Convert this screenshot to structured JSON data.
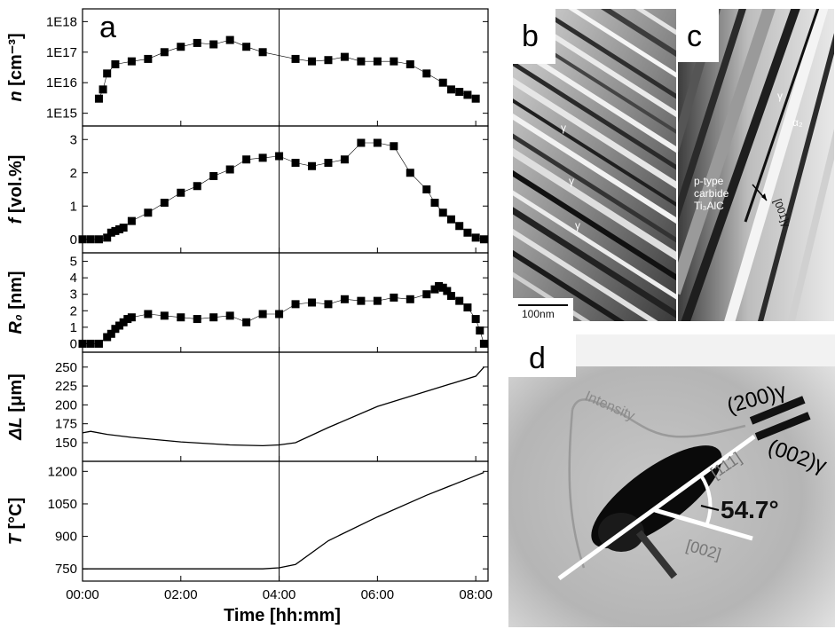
{
  "panels": {
    "a": {
      "letter": "a"
    },
    "b": {
      "letter": "b",
      "labels": [
        "γ",
        "γ",
        "γ"
      ],
      "scalebar": "100nm"
    },
    "c": {
      "letter": "c",
      "labels": {
        "gamma": "γ",
        "alpha2": "α₂",
        "carbide_line1": "p-type",
        "carbide_line2": "carbide",
        "carbide_line3": "Ti₃AlC",
        "direction": "[001]γ"
      }
    },
    "d": {
      "letter": "d",
      "labels": {
        "intensity": "Intensity",
        "d200": "(200)γ",
        "d002": "(002)γ",
        "m111": "[111]",
        "m002": "[002]",
        "angle": "54.7°"
      }
    }
  },
  "axes": {
    "xlabel": "Time [hh:mm]",
    "x_ticks": [
      "00:00",
      "02:00",
      "04:00",
      "06:00",
      "08:00"
    ]
  },
  "chart_data": [
    {
      "type": "scatter",
      "ylabel_italic": "n",
      "ylabel_rest": " [cm⁻³]",
      "yscale": "log",
      "ylim": [
        500000000000000.0,
        2e+18
      ],
      "yticks": [
        "1E15",
        "1E16",
        "1E17",
        "1E18"
      ],
      "x": [
        "00:20",
        "00:25",
        "00:30",
        "00:40",
        "01:00",
        "01:20",
        "01:40",
        "02:00",
        "02:20",
        "02:40",
        "03:00",
        "03:20",
        "03:40",
        "04:20",
        "04:40",
        "05:00",
        "05:20",
        "05:40",
        "06:00",
        "06:20",
        "06:40",
        "07:00",
        "07:20",
        "07:30",
        "07:40",
        "07:50",
        "08:00"
      ],
      "values": [
        3000000000000000.0,
        6000000000000000.0,
        2e+16,
        4e+16,
        5e+16,
        6e+16,
        1e+17,
        1.5e+17,
        2e+17,
        1.8e+17,
        2.5e+17,
        1.5e+17,
        1e+17,
        6e+16,
        5e+16,
        5.5e+16,
        7e+16,
        5e+16,
        5e+16,
        5e+16,
        4e+16,
        2e+16,
        1e+16,
        6000000000000000.0,
        5000000000000000.0,
        4000000000000000.0,
        3000000000000000.0
      ]
    },
    {
      "type": "scatter",
      "ylabel_italic": "f",
      "ylabel_rest": " [vol.%]",
      "ylim": [
        -0.3,
        3.3
      ],
      "yticks": [
        "0",
        "1",
        "2",
        "3"
      ],
      "x": [
        "00:00",
        "00:10",
        "00:20",
        "00:30",
        "00:35",
        "00:40",
        "00:45",
        "00:50",
        "01:00",
        "01:20",
        "01:40",
        "02:00",
        "02:20",
        "02:40",
        "03:00",
        "03:20",
        "03:40",
        "04:00",
        "04:20",
        "04:40",
        "05:00",
        "05:20",
        "05:40",
        "06:00",
        "06:20",
        "06:40",
        "07:00",
        "07:10",
        "07:20",
        "07:30",
        "07:40",
        "07:50",
        "08:00",
        "08:10"
      ],
      "values": [
        0,
        0,
        0,
        0.05,
        0.2,
        0.25,
        0.3,
        0.35,
        0.55,
        0.8,
        1.1,
        1.4,
        1.6,
        1.9,
        2.1,
        2.4,
        2.45,
        2.5,
        2.3,
        2.2,
        2.3,
        2.4,
        2.9,
        2.9,
        2.8,
        2.0,
        1.5,
        1.1,
        0.8,
        0.6,
        0.4,
        0.2,
        0.05,
        0
      ]
    },
    {
      "type": "scatter",
      "ylabel_italic": "R₀",
      "ylabel_rest": " [nm]",
      "ylim": [
        -0.3,
        5.3
      ],
      "yticks": [
        "0",
        "1",
        "2",
        "3",
        "4",
        "5"
      ],
      "x": [
        "00:00",
        "00:10",
        "00:20",
        "00:30",
        "00:35",
        "00:40",
        "00:45",
        "00:50",
        "00:55",
        "01:00",
        "01:20",
        "01:40",
        "02:00",
        "02:20",
        "02:40",
        "03:00",
        "03:20",
        "03:40",
        "04:00",
        "04:20",
        "04:40",
        "05:00",
        "05:20",
        "05:40",
        "06:00",
        "06:20",
        "06:40",
        "07:00",
        "07:10",
        "07:15",
        "07:20",
        "07:25",
        "07:30",
        "07:40",
        "07:50",
        "08:00",
        "08:05",
        "08:10"
      ],
      "values": [
        0,
        0,
        0,
        0.4,
        0.6,
        0.9,
        1.1,
        1.3,
        1.5,
        1.6,
        1.8,
        1.7,
        1.6,
        1.5,
        1.6,
        1.7,
        1.3,
        1.8,
        1.8,
        2.4,
        2.5,
        2.4,
        2.7,
        2.6,
        2.6,
        2.8,
        2.7,
        3.0,
        3.3,
        3.5,
        3.4,
        3.2,
        2.9,
        2.6,
        2.2,
        1.5,
        0.8,
        0
      ]
    },
    {
      "type": "line",
      "ylabel_italic": "ΔL",
      "ylabel_rest": " [μm]",
      "ylim": [
        130,
        265
      ],
      "yticks": [
        "150",
        "175",
        "200",
        "225",
        "250"
      ],
      "x": [
        "00:00",
        "00:10",
        "00:30",
        "01:00",
        "02:00",
        "03:00",
        "03:40",
        "04:00",
        "04:20",
        "05:00",
        "06:00",
        "07:00",
        "08:00",
        "08:10"
      ],
      "values": [
        163,
        165,
        161,
        157,
        151,
        147,
        146,
        147,
        150,
        170,
        198,
        218,
        238,
        250
      ]
    },
    {
      "type": "line",
      "ylabel_italic": "T",
      "ylabel_rest": " [°C]",
      "ylim": [
        710,
        1230
      ],
      "yticks": [
        "750",
        "900",
        "1050",
        "1200"
      ],
      "x": [
        "00:00",
        "01:00",
        "02:00",
        "03:00",
        "03:40",
        "04:00",
        "04:20",
        "05:00",
        "06:00",
        "07:00",
        "08:00",
        "08:10"
      ],
      "values": [
        750,
        750,
        750,
        750,
        750,
        755,
        770,
        880,
        990,
        1090,
        1180,
        1195
      ]
    }
  ],
  "colors": {
    "marker": "#000000",
    "line": "#000000",
    "frame": "#000000",
    "background": "#ffffff"
  }
}
